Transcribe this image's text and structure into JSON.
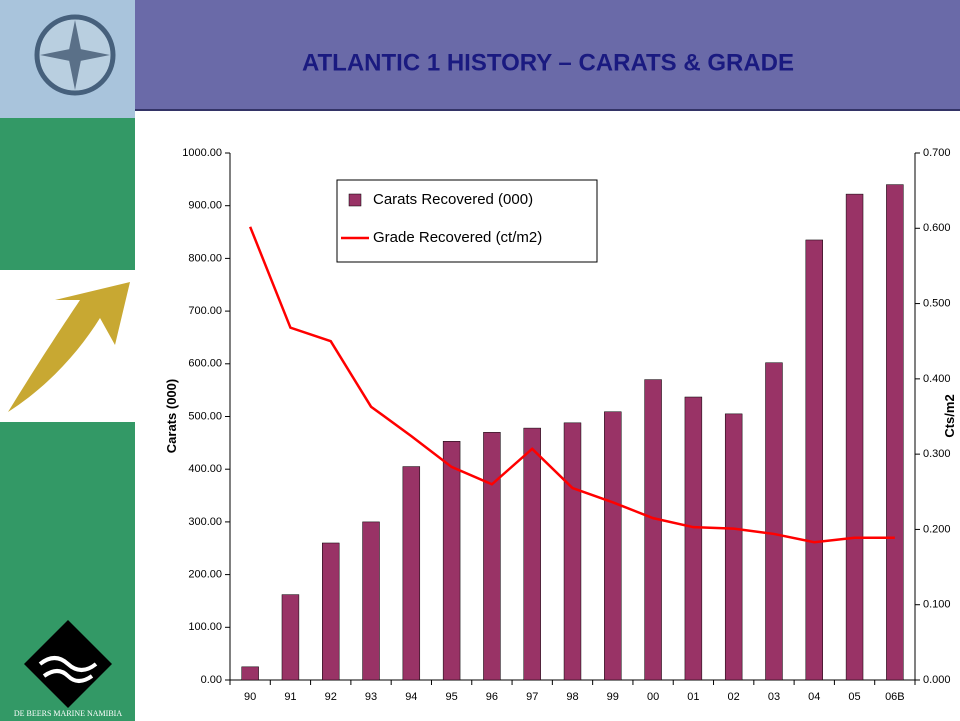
{
  "brand": "DE BEERS MARINE NAMIBIA",
  "chart_data": {
    "type": "bar-line",
    "title": "ATLANTIC 1 HISTORY – CARATS & GRADE",
    "categories": [
      "90",
      "91",
      "92",
      "93",
      "94",
      "95",
      "96",
      "97",
      "98",
      "99",
      "00",
      "01",
      "02",
      "03",
      "04",
      "05",
      "06B"
    ],
    "series": [
      {
        "name": "Carats Recovered (000)",
        "color": "#993366",
        "kind": "bar",
        "values": [
          25,
          162,
          260,
          300,
          405,
          453,
          470,
          478,
          488,
          509,
          570,
          537,
          505,
          602,
          835,
          922,
          940
        ]
      },
      {
        "name": "Grade Recovered (ct/m2)",
        "color": "#ff0000",
        "kind": "line",
        "axis": "y2",
        "values": [
          0.602,
          0.468,
          0.45,
          0.363,
          0.324,
          0.283,
          0.26,
          0.307,
          0.255,
          0.236,
          0.215,
          0.203,
          0.201,
          0.194,
          0.183,
          0.189,
          0.189
        ]
      }
    ],
    "ylabel": "Carats (000)",
    "y2label": "Cts/m2",
    "ylim": [
      0,
      1000
    ],
    "yticks": [
      {
        "value": 0,
        "label": "0.00"
      },
      {
        "value": 100,
        "label": "100.00"
      },
      {
        "value": 200,
        "label": "200.00"
      },
      {
        "value": 300,
        "label": "300.00"
      },
      {
        "value": 400,
        "label": "400.00"
      },
      {
        "value": 500,
        "label": "500.00"
      },
      {
        "value": 600,
        "label": "600.00"
      },
      {
        "value": 700,
        "label": "700.00"
      },
      {
        "value": 800,
        "label": "800.00"
      },
      {
        "value": 900,
        "label": "900.00"
      },
      {
        "value": 1000,
        "label": "1000.00"
      }
    ],
    "y2lim": [
      0,
      0.7
    ],
    "y2ticks": [
      {
        "value": 0,
        "label": "0.000"
      },
      {
        "value": 0.1,
        "label": "0.100"
      },
      {
        "value": 0.2,
        "label": "0.200"
      },
      {
        "value": 0.3,
        "label": "0.300"
      },
      {
        "value": 0.4,
        "label": "0.400"
      },
      {
        "value": 0.5,
        "label": "0.500"
      },
      {
        "value": 0.6,
        "label": "0.600"
      },
      {
        "value": 0.7,
        "label": "0.700"
      }
    ],
    "legend": "upper left"
  }
}
